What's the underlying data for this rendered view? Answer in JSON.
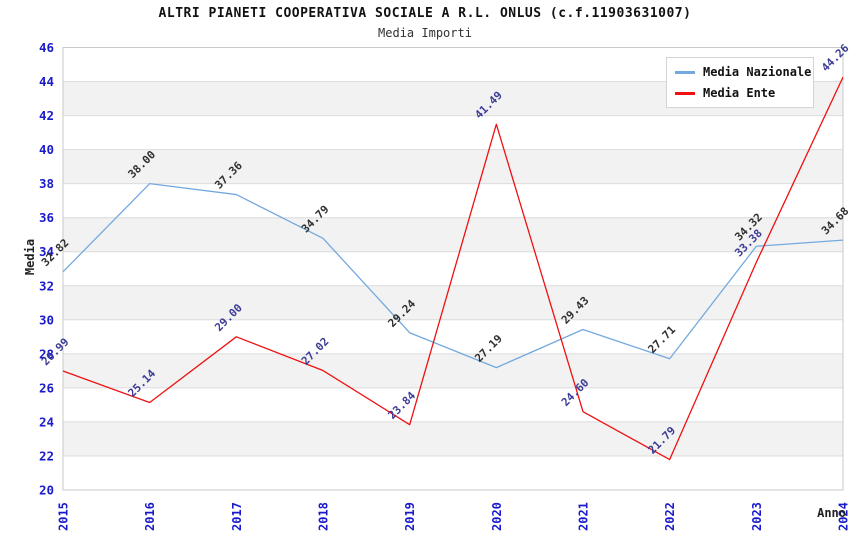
{
  "title": "ALTRI PIANETI COOPERATIVA SOCIALE A R.L. ONLUS (c.f.11903631007)",
  "subtitle": "Media Importi",
  "chart_data": {
    "type": "line",
    "x": [
      "2015",
      "2016",
      "2017",
      "2018",
      "2019",
      "2020",
      "2021",
      "2022",
      "2023",
      "2024"
    ],
    "xlabel": "Anno",
    "ylabel": "Media",
    "ylim": [
      20,
      46
    ],
    "ytick_step": 2,
    "grid": "horizontal-only",
    "background_bands": "alternating white / light gray every 2 units",
    "legend_position": "top-right",
    "series": [
      {
        "name": "Media Nazionale",
        "color": "#74a9df",
        "label_color": "#303030",
        "values": [
          32.82,
          38.0,
          37.36,
          34.79,
          29.24,
          27.19,
          29.43,
          27.71,
          34.32,
          34.68
        ]
      },
      {
        "name": "Media Ente",
        "color": "#ee1111",
        "label_color": "#3c3c96",
        "values": [
          26.99,
          25.14,
          29.0,
          27.02,
          23.84,
          41.49,
          24.6,
          21.79,
          33.38,
          44.26
        ]
      }
    ]
  },
  "colors": {
    "tick_label": "#1a1acd",
    "gridline": "#dcdcdc",
    "band_gray": "#f2f2f2",
    "frame": "#c9c9c9",
    "title": "#111111",
    "axis_title": "#222222"
  }
}
